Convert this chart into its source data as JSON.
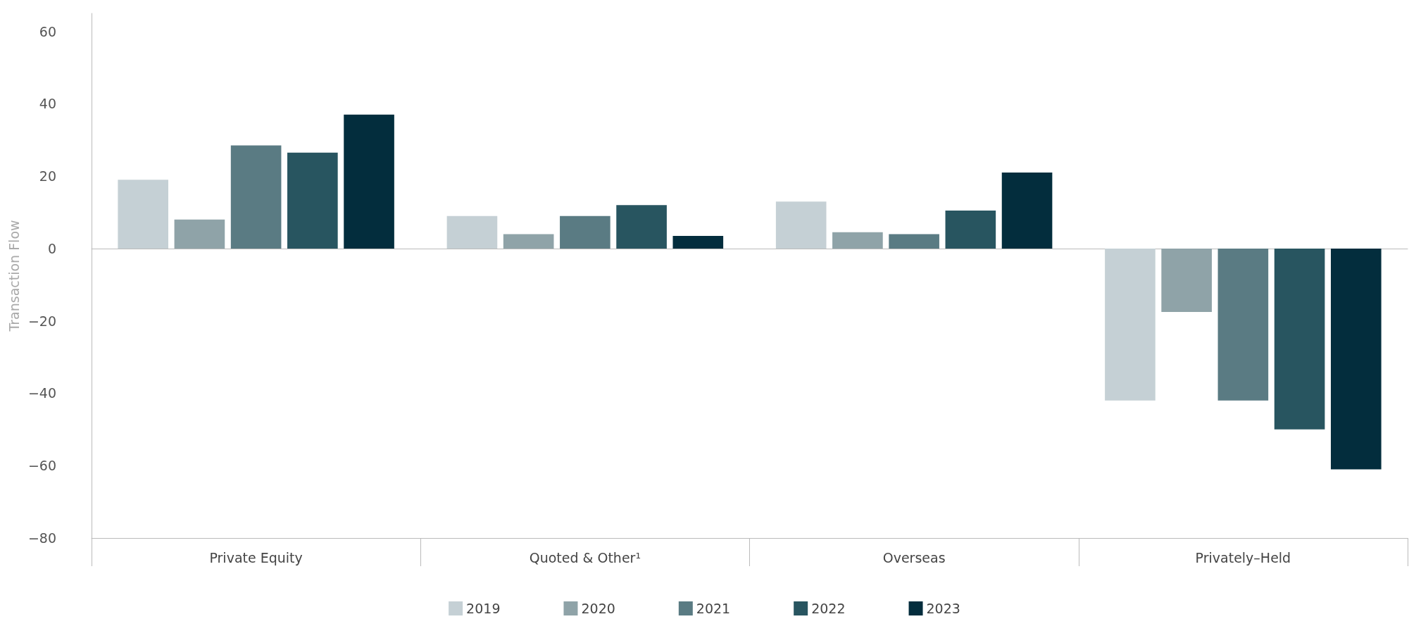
{
  "chart_data": {
    "type": "bar",
    "ylabel": "Transaction Flow",
    "categories": [
      "Private Equity",
      "Quoted & Other¹",
      "Overseas",
      "Privately–Held"
    ],
    "series": [
      {
        "name": "2019",
        "color": "#c5d0d5",
        "values": [
          19,
          9,
          13,
          -42
        ]
      },
      {
        "name": "2020",
        "color": "#8fa3a8",
        "values": [
          8,
          4,
          4.5,
          -17.5
        ]
      },
      {
        "name": "2021",
        "color": "#5a7b83",
        "values": [
          28.5,
          9,
          4,
          -42
        ]
      },
      {
        "name": "2022",
        "color": "#285560",
        "values": [
          26.5,
          12,
          10.5,
          -50
        ]
      },
      {
        "name": "2023",
        "color": "#032d3d",
        "values": [
          37,
          3.5,
          21,
          -61
        ]
      }
    ],
    "ylim": [
      -80,
      65
    ],
    "yticks": [
      -80,
      -60,
      -40,
      -20,
      0,
      20,
      40,
      60
    ],
    "legend": "bottom"
  }
}
